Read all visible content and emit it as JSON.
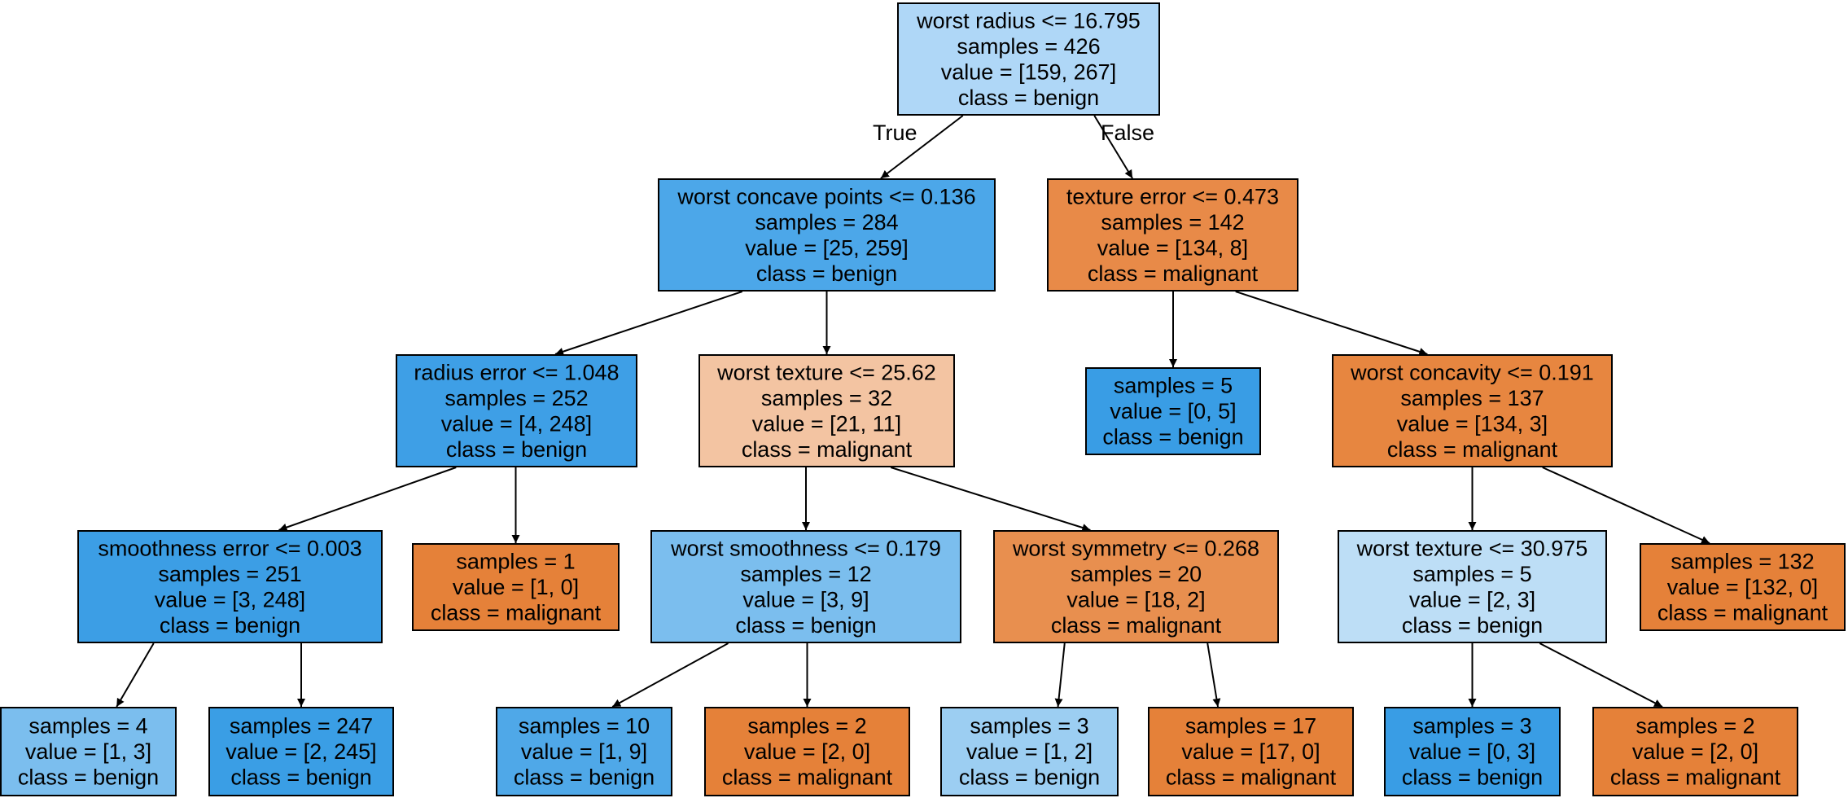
{
  "edge_labels": {
    "true_label": "True",
    "false_label": "False"
  },
  "nodes": [
    {
      "id": "n0",
      "color": "#afd7f7",
      "lines": [
        "worst radius <= 16.795",
        "samples = 426",
        "value = [159, 267]",
        "class = benign"
      ]
    },
    {
      "id": "n1",
      "color": "#4ca7e9",
      "lines": [
        "worst concave points <= 0.136",
        "samples = 284",
        "value = [25, 259]",
        "class = benign"
      ]
    },
    {
      "id": "n2",
      "color": "#e88a48",
      "lines": [
        "texture error <= 0.473",
        "samples = 142",
        "value = [134, 8]",
        "class = malignant"
      ]
    },
    {
      "id": "n3",
      "color": "#3e9fe6",
      "lines": [
        "radius error <= 1.048",
        "samples = 252",
        "value = [4, 248]",
        "class = benign"
      ]
    },
    {
      "id": "n4",
      "color": "#f3c4a2",
      "lines": [
        "worst texture <= 25.62",
        "samples = 32",
        "value = [21, 11]",
        "class = malignant"
      ]
    },
    {
      "id": "n5",
      "color": "#399de5",
      "lines": [
        "samples = 5",
        "value = [0, 5]",
        "class = benign"
      ]
    },
    {
      "id": "n6",
      "color": "#e78640",
      "lines": [
        "worst concavity <= 0.191",
        "samples = 137",
        "value = [134, 3]",
        "class = malignant"
      ]
    },
    {
      "id": "n7",
      "color": "#3c9ee5",
      "lines": [
        "smoothness error <= 0.003",
        "samples = 251",
        "value = [3, 248]",
        "class = benign"
      ]
    },
    {
      "id": "n8",
      "color": "#e58139",
      "lines": [
        "samples = 1",
        "value = [1, 0]",
        "class = malignant"
      ]
    },
    {
      "id": "n9",
      "color": "#7bbeee",
      "lines": [
        "worst smoothness <= 0.179",
        "samples = 12",
        "value = [3, 9]",
        "class = benign"
      ]
    },
    {
      "id": "n10",
      "color": "#e88f4f",
      "lines": [
        "worst symmetry <= 0.268",
        "samples = 20",
        "value = [18, 2]",
        "class = malignant"
      ]
    },
    {
      "id": "n11",
      "color": "#bddef6",
      "lines": [
        "worst texture <= 30.975",
        "samples = 5",
        "value = [2, 3]",
        "class = benign"
      ]
    },
    {
      "id": "n12",
      "color": "#e58139",
      "lines": [
        "samples = 132",
        "value = [132, 0]",
        "class = malignant"
      ]
    },
    {
      "id": "n13",
      "color": "#7bbeee",
      "lines": [
        "samples = 4",
        "value = [1, 3]",
        "class = benign"
      ]
    },
    {
      "id": "n14",
      "color": "#3a9ee5",
      "lines": [
        "samples = 247",
        "value = [2, 245]",
        "class = benign"
      ]
    },
    {
      "id": "n15",
      "color": "#4fa8e8",
      "lines": [
        "samples = 10",
        "value = [1, 9]",
        "class = benign"
      ]
    },
    {
      "id": "n16",
      "color": "#e58139",
      "lines": [
        "samples = 2",
        "value = [2, 0]",
        "class = malignant"
      ]
    },
    {
      "id": "n17",
      "color": "#9ccef2",
      "lines": [
        "samples = 3",
        "value = [1, 2]",
        "class = benign"
      ]
    },
    {
      "id": "n18",
      "color": "#e58139",
      "lines": [
        "samples = 17",
        "value = [17, 0]",
        "class = malignant"
      ]
    },
    {
      "id": "n19",
      "color": "#399de5",
      "lines": [
        "samples = 3",
        "value = [0, 3]",
        "class = benign"
      ]
    },
    {
      "id": "n20",
      "color": "#e58139",
      "lines": [
        "samples = 2",
        "value = [2, 0]",
        "class = malignant"
      ]
    }
  ],
  "edges": [
    {
      "from": "n0",
      "to": "n1",
      "label": "true_label"
    },
    {
      "from": "n0",
      "to": "n2",
      "label": "false_label"
    },
    {
      "from": "n1",
      "to": "n3"
    },
    {
      "from": "n1",
      "to": "n4"
    },
    {
      "from": "n2",
      "to": "n5"
    },
    {
      "from": "n2",
      "to": "n6"
    },
    {
      "from": "n3",
      "to": "n7"
    },
    {
      "from": "n3",
      "to": "n8"
    },
    {
      "from": "n4",
      "to": "n9"
    },
    {
      "from": "n4",
      "to": "n10"
    },
    {
      "from": "n6",
      "to": "n11"
    },
    {
      "from": "n6",
      "to": "n12"
    },
    {
      "from": "n7",
      "to": "n13"
    },
    {
      "from": "n7",
      "to": "n14"
    },
    {
      "from": "n9",
      "to": "n15"
    },
    {
      "from": "n9",
      "to": "n16"
    },
    {
      "from": "n10",
      "to": "n17"
    },
    {
      "from": "n10",
      "to": "n18"
    },
    {
      "from": "n11",
      "to": "n19"
    },
    {
      "from": "n11",
      "to": "n20"
    }
  ]
}
